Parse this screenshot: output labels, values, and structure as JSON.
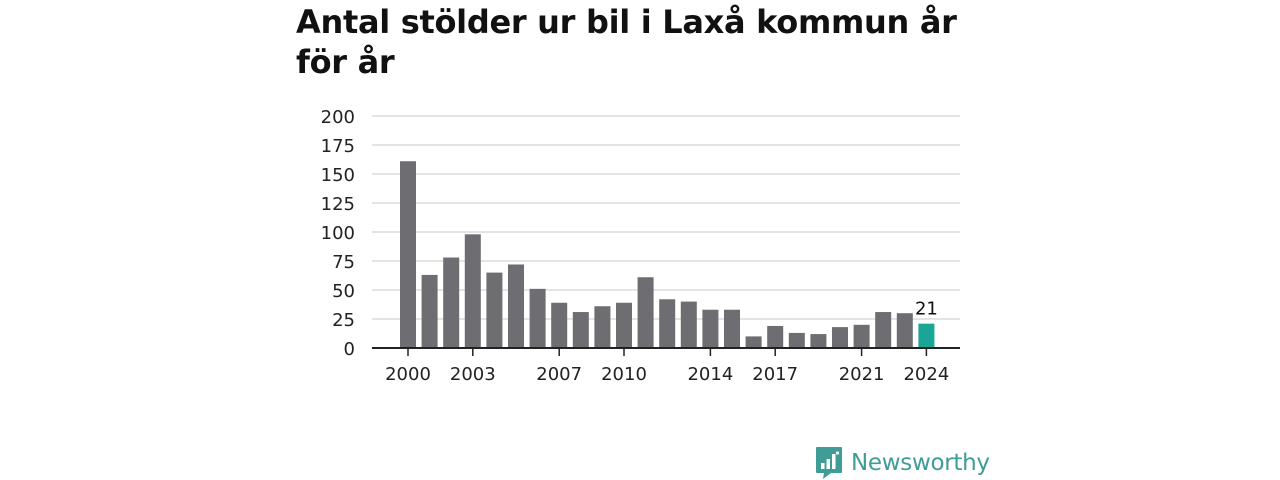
{
  "colors": {
    "bar": "#6e6d72",
    "highlight": "#1aa597",
    "grid": "#dcdcdc",
    "axis": "#222222",
    "brand": "#3f9c97"
  },
  "brand": {
    "name": "Newsworthy",
    "icon": "bar-chart-speech-bubble-icon"
  },
  "chart_data": {
    "type": "bar",
    "title": "Antal stölder ur bil i Laxå kommun år för år",
    "xlabel": "",
    "ylabel": "",
    "ylim": [
      0,
      200
    ],
    "yticks": [
      0,
      25,
      50,
      75,
      100,
      125,
      150,
      175,
      200
    ],
    "categories": [
      "2000",
      "2001",
      "2002",
      "2003",
      "2004",
      "2005",
      "2006",
      "2007",
      "2008",
      "2009",
      "2010",
      "2011",
      "2012",
      "2013",
      "2014",
      "2015",
      "2016",
      "2017",
      "2018",
      "2019",
      "2020",
      "2021",
      "2022",
      "2023",
      "2024"
    ],
    "xtick_labels": [
      "2000",
      "2003",
      "2007",
      "2010",
      "2014",
      "2017",
      "2021",
      "2024"
    ],
    "values": [
      161,
      63,
      78,
      98,
      65,
      72,
      51,
      39,
      31,
      36,
      39,
      61,
      42,
      40,
      33,
      33,
      10,
      19,
      13,
      12,
      18,
      20,
      31,
      30,
      21
    ],
    "highlight": "2024",
    "data_labels": [
      {
        "category": "2024",
        "text": "21"
      }
    ],
    "grid": true,
    "legend": "none"
  }
}
